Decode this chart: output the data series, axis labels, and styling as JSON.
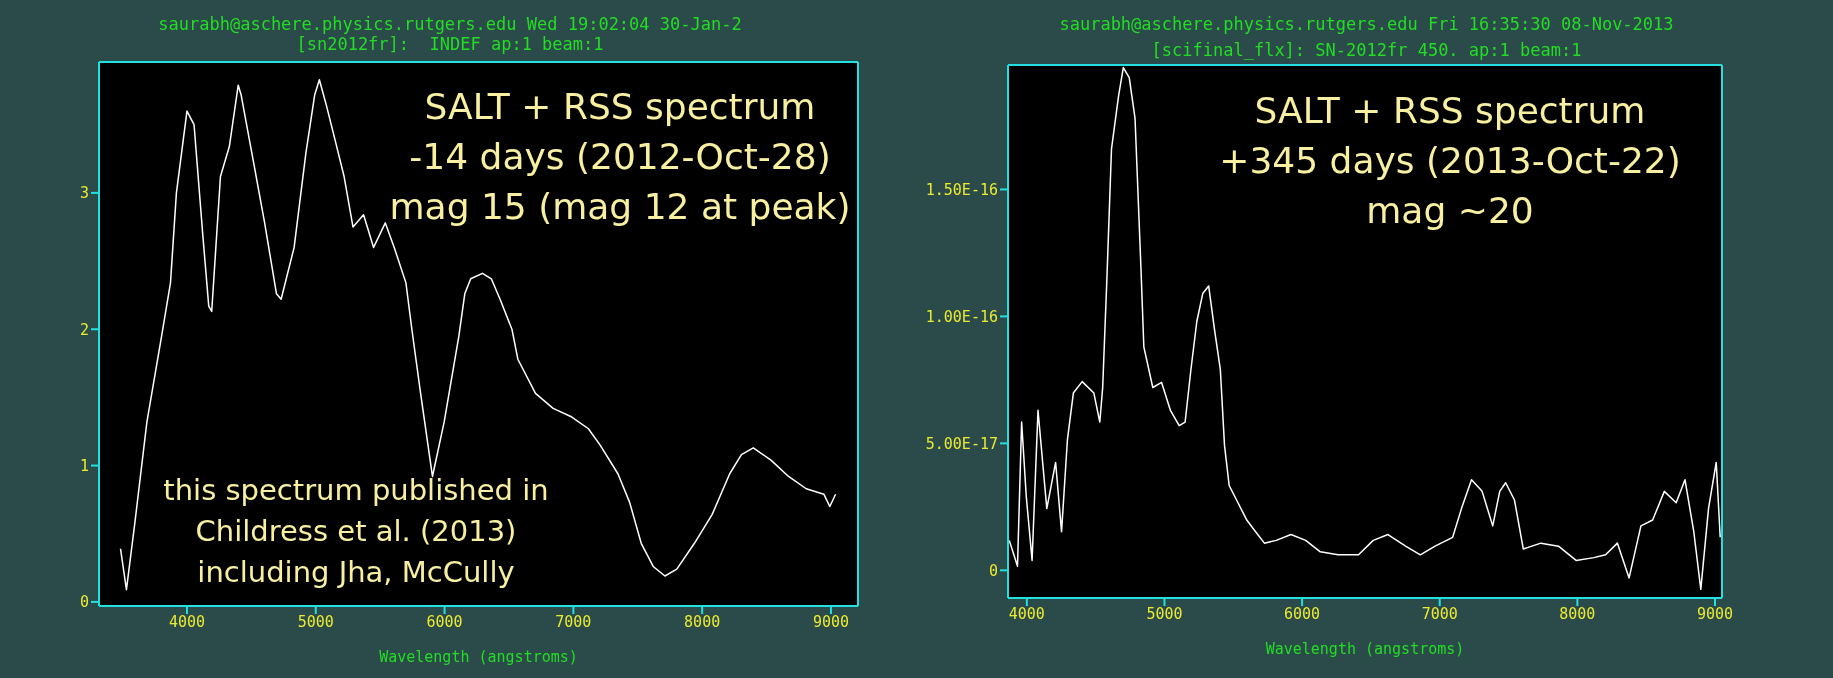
{
  "chart_data": [
    {
      "type": "line",
      "title": "saurabh@aschere.physics.rutgers.edu Wed 19:02:04 30-Jan-2",
      "subtitle": "[sn2012fr]:  INDEF ap:1 beam:1",
      "xlabel": "Wavelength (angstroms)",
      "annotations": [
        "SALT + RSS spectrum\n-14 days (2012-Oct-28)\nmag 15 (mag 12 at peak)",
        "this spectrum published in\nChildress et al. (2013)\nincluding Jha, McCully"
      ],
      "xlim": [
        3317,
        9210
      ],
      "xticks": [
        4000,
        5000,
        6000,
        7000,
        8000,
        9000
      ],
      "ylim": [
        -0.03,
        3.96
      ],
      "yticks": [
        0,
        1,
        2,
        3
      ],
      "marker": "none",
      "x": [
        3484,
        3530,
        3598,
        3689,
        3803,
        3872,
        3918,
        4000,
        4055,
        4123,
        4169,
        4192,
        4260,
        4329,
        4398,
        4420,
        4512,
        4603,
        4695,
        4731,
        4832,
        4923,
        4992,
        5028,
        5083,
        5152,
        5220,
        5289,
        5371,
        5449,
        5540,
        5609,
        5700,
        5746,
        5814,
        5906,
        5997,
        6111,
        6157,
        6203,
        6294,
        6363,
        6431,
        6523,
        6569,
        6706,
        6843,
        6980,
        7117,
        7208,
        7346,
        7437,
        7527,
        7620,
        7711,
        7803,
        7940,
        8077,
        8214,
        8305,
        8397,
        8534,
        8671,
        8808,
        8945,
        8991,
        9036
      ],
      "series": [
        {
          "color": "#ffffff",
          "values": [
            0.39,
            0.09,
            0.6,
            1.32,
            1.95,
            2.34,
            3.0,
            3.6,
            3.5,
            2.69,
            2.17,
            2.13,
            3.12,
            3.34,
            3.79,
            3.72,
            3.25,
            2.78,
            2.26,
            2.22,
            2.6,
            3.29,
            3.72,
            3.83,
            3.64,
            3.38,
            3.12,
            2.75,
            2.84,
            2.6,
            2.78,
            2.6,
            2.34,
            2.0,
            1.53,
            0.92,
            1.32,
            1.95,
            2.26,
            2.37,
            2.41,
            2.37,
            2.22,
            2.0,
            1.78,
            1.53,
            1.42,
            1.36,
            1.27,
            1.15,
            0.94,
            0.73,
            0.43,
            0.26,
            0.19,
            0.24,
            0.43,
            0.64,
            0.94,
            1.08,
            1.13,
            1.04,
            0.92,
            0.83,
            0.79,
            0.7,
            0.79
          ]
        }
      ]
    },
    {
      "type": "line",
      "title": "saurabh@aschere.physics.rutgers.edu Fri 16:35:30 08-Nov-2013",
      "subtitle": "[scifinal_flx]: SN-2012fr 450. ap:1 beam:1",
      "xlabel": "Wavelength (angstroms)",
      "annotations": [
        "SALT + RSS spectrum\n+345 days (2013-Oct-22)\nmag ~20"
      ],
      "xlim": [
        3863,
        9051
      ],
      "xticks": [
        4000,
        5000,
        6000,
        7000,
        8000,
        9000
      ],
      "ylim": [
        -1.09e-17,
        1.99e-16
      ],
      "yticks": [
        0,
        {
          "value": 5e-17,
          "label": "5.00E-17"
        },
        {
          "value": 1e-16,
          "label": "1.00E-16"
        },
        {
          "value": 1.5e-16,
          "label": "1.50E-16"
        }
      ],
      "marker": "none",
      "x": [
        3872,
        3932,
        3962,
        3996,
        4038,
        4081,
        4145,
        4209,
        4252,
        4295,
        4338,
        4402,
        4487,
        4530,
        4551,
        4581,
        4615,
        4667,
        4701,
        4744,
        4786,
        4829,
        4850,
        4915,
        4979,
        5043,
        5107,
        5150,
        5192,
        5235,
        5278,
        5321,
        5363,
        5406,
        5436,
        5470,
        5534,
        5598,
        5662,
        5726,
        5812,
        5919,
        6026,
        6132,
        6261,
        6410,
        6517,
        6624,
        6752,
        6859,
        6966,
        7094,
        7158,
        7231,
        7308,
        7385,
        7436,
        7479,
        7543,
        7607,
        7735,
        7863,
        7991,
        8120,
        8205,
        8291,
        8376,
        8462,
        8547,
        8632,
        8718,
        8782,
        8846,
        8897,
        8953,
        9009,
        9038
      ],
      "series": [
        {
          "color": "#ffffff",
          "values": [
            1.18e-17,
            1.6e-18,
            5.84e-17,
            2.89e-17,
            3.9e-18,
            6.3e-17,
            2.43e-17,
            4.25e-17,
            1.52e-17,
            5.16e-17,
            6.98e-17,
            7.43e-17,
            6.98e-17,
            5.84e-17,
            7.2e-17,
            1.14e-16,
            1.66e-16,
            1.87e-16,
            1.98e-16,
            1.94e-16,
            1.78e-16,
            1.19e-16,
            8.8e-17,
            7.2e-17,
            7.4e-17,
            6.3e-17,
            5.7e-17,
            5.84e-17,
            7.9e-17,
            9.8e-17,
            1.09e-16,
            1.12e-16,
            9.5e-17,
            7.9e-17,
            4.93e-17,
            3.34e-17,
            2.66e-17,
            1.98e-17,
            1.52e-17,
            1.07e-17,
            1.18e-17,
            1.41e-17,
            1.18e-17,
            7.3e-18,
            6.1e-18,
            6.1e-18,
            1.18e-17,
            1.41e-17,
            9.5e-18,
            6.1e-18,
            9.5e-18,
            1.3e-17,
            2.43e-17,
            3.57e-17,
            3.11e-17,
            1.75e-17,
            3.11e-17,
            3.45e-17,
            2.77e-17,
            8.4e-18,
            1.07e-17,
            9.5e-18,
            3.9e-18,
            5e-18,
            6.1e-18,
            1.07e-17,
            -3e-18,
            1.75e-17,
            1.98e-17,
            3.11e-17,
            2.66e-17,
            3.57e-17,
            1.52e-17,
            -7.5e-18,
            2.43e-17,
            4.25e-17,
            1.3e-17
          ]
        }
      ]
    }
  ]
}
